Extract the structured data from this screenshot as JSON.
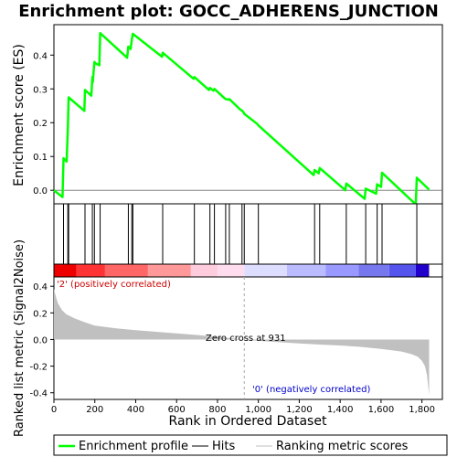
{
  "chart_data": {
    "type": "line",
    "title": "Enrichment plot: GOCC_ADHERENS_JUNCTION",
    "es_panel": {
      "ylabel": "Enrichment score (ES)",
      "ylim": [
        -0.04,
        0.49
      ],
      "yticks": [
        0.0,
        0.1,
        0.2,
        0.3,
        0.4
      ],
      "ytick_labels": [
        "0.0",
        "0.1",
        "0.2",
        "0.3",
        "0.4"
      ],
      "series": [
        {
          "name": "Enrichment profile",
          "color": "#00ff00",
          "x": [
            0,
            42,
            47,
            62,
            68,
            72,
            149,
            152,
            183,
            188,
            190,
            198,
            204,
            222,
            226,
            358,
            364,
            375,
            381,
            386,
            529,
            532,
            683,
            687,
            758,
            763,
            780,
            785,
            835,
            840,
            855,
            858,
            915,
            920,
            928,
            931,
            995,
            1000,
            1270,
            1275,
            1295,
            1300,
            1425,
            1430,
            1520,
            1525,
            1576,
            1581,
            1600,
            1605,
            1770,
            1775,
            1835
          ],
          "y": [
            0.0,
            -0.02,
            0.095,
            0.085,
            0.18,
            0.275,
            0.235,
            0.297,
            0.28,
            0.335,
            0.32,
            0.38,
            0.375,
            0.37,
            0.465,
            0.392,
            0.425,
            0.418,
            0.445,
            0.463,
            0.395,
            0.407,
            0.33,
            0.335,
            0.297,
            0.303,
            0.295,
            0.3,
            0.272,
            0.27,
            0.268,
            0.27,
            0.237,
            0.236,
            0.23,
            0.226,
            0.196,
            0.192,
            0.045,
            0.06,
            0.05,
            0.066,
            0.0,
            0.02,
            -0.025,
            0.005,
            -0.01,
            0.018,
            0.01,
            0.052,
            -0.042,
            0.037,
            0.002
          ]
        }
      ]
    },
    "hits": {
      "name": "Hits",
      "color": "#000000",
      "x": [
        47,
        68,
        72,
        152,
        188,
        198,
        226,
        364,
        381,
        386,
        532,
        687,
        763,
        785,
        840,
        858,
        920,
        931,
        1000,
        1275,
        1300,
        1430,
        1525,
        1581,
        1605,
        1775
      ]
    },
    "metric_panel": {
      "ylabel": "Ranked list metric (Signal2Noise)",
      "ylim": [
        -0.45,
        0.47
      ],
      "yticks": [
        -0.4,
        -0.2,
        0.0,
        0.2,
        0.4
      ],
      "ytick_labels": [
        "-0.4",
        "-0.2",
        "0.0",
        "0.2",
        "0.4"
      ],
      "series_name": "Ranking metric scores",
      "fill_color": "#c0c0c0",
      "x": [
        0,
        10,
        20,
        40,
        60,
        100,
        150,
        200,
        300,
        400,
        500,
        600,
        700,
        800,
        931,
        1000,
        1100,
        1200,
        1300,
        1400,
        1500,
        1600,
        1700,
        1750,
        1780,
        1800,
        1815,
        1825,
        1835
      ],
      "y": [
        0.38,
        0.32,
        0.27,
        0.22,
        0.19,
        0.16,
        0.13,
        0.105,
        0.085,
        0.07,
        0.058,
        0.046,
        0.034,
        0.02,
        0.0,
        -0.01,
        -0.02,
        -0.03,
        -0.038,
        -0.045,
        -0.055,
        -0.07,
        -0.09,
        -0.11,
        -0.13,
        -0.16,
        -0.2,
        -0.27,
        -0.42
      ]
    },
    "xaxis": {
      "xlabel": "Rank in Ordered Dataset",
      "xlim": [
        0,
        1900
      ],
      "xticks": [
        0,
        200,
        400,
        600,
        800,
        1000,
        1200,
        1400,
        1600,
        1800
      ],
      "xtick_labels": [
        "0",
        "200",
        "400",
        "600",
        "800",
        "1,000",
        "1,200",
        "1,400",
        "1,600",
        "1,800"
      ],
      "list_size": 1835
    },
    "zero_cross": {
      "x": 931,
      "label": "Zero cross at 931"
    },
    "pos_label": {
      "text": "'2' (positively correlated)",
      "color": "#cc0000"
    },
    "neg_label": {
      "text": "'0' (negatively correlated)",
      "color": "#0000cc"
    },
    "color_band": [
      {
        "from": 0,
        "to": 110,
        "color": "#ee0000"
      },
      {
        "from": 110,
        "to": 250,
        "color": "#ff3333"
      },
      {
        "from": 250,
        "to": 460,
        "color": "#ff6666"
      },
      {
        "from": 460,
        "to": 670,
        "color": "#ff9999"
      },
      {
        "from": 670,
        "to": 800,
        "color": "#ffccdd"
      },
      {
        "from": 800,
        "to": 931,
        "color": "#ffddee"
      },
      {
        "from": 931,
        "to": 1140,
        "color": "#ddddff"
      },
      {
        "from": 1140,
        "to": 1330,
        "color": "#bbbbff"
      },
      {
        "from": 1330,
        "to": 1490,
        "color": "#9999ff"
      },
      {
        "from": 1490,
        "to": 1640,
        "color": "#7777ee"
      },
      {
        "from": 1640,
        "to": 1770,
        "color": "#5555ee"
      },
      {
        "from": 1770,
        "to": 1835,
        "color": "#2200cc"
      }
    ],
    "legend": {
      "placement": "bottom",
      "items": [
        {
          "label": "Enrichment profile",
          "color": "#00ff00"
        },
        {
          "label": "Hits",
          "color": "#000000"
        },
        {
          "label": "Ranking metric scores",
          "color": "#c0c0c0"
        }
      ]
    }
  }
}
